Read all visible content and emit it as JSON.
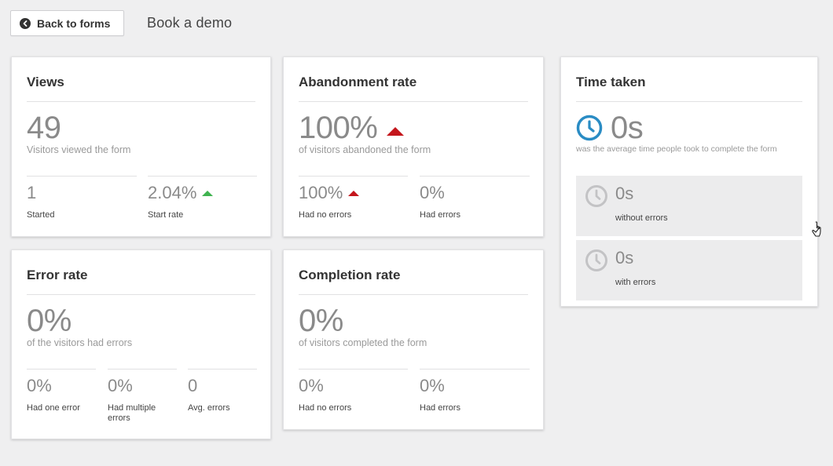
{
  "header": {
    "back_label": "Back to forms",
    "form_name": "Book a demo"
  },
  "views": {
    "title": "Views",
    "value": "49",
    "description": "Visitors viewed the form",
    "stats": [
      {
        "value": "1",
        "label": "Started"
      },
      {
        "value": "2.04%",
        "label": "Start rate",
        "trend": "up-green"
      }
    ]
  },
  "abandonment": {
    "title": "Abandonment rate",
    "value": "100%",
    "trend": "up-red",
    "description": "of visitors abandoned the form",
    "stats": [
      {
        "value": "100%",
        "label": "Had no errors",
        "trend": "up-red"
      },
      {
        "value": "0%",
        "label": "Had errors"
      }
    ]
  },
  "time_taken": {
    "title": "Time taken",
    "value": "0s",
    "description": "was the average time people took to complete the form",
    "panels": [
      {
        "value": "0s",
        "label": "without errors"
      },
      {
        "value": "0s",
        "label": "with errors"
      }
    ]
  },
  "error_rate": {
    "title": "Error rate",
    "value": "0%",
    "description": "of the visitors had errors",
    "stats": [
      {
        "value": "0%",
        "label": "Had one error"
      },
      {
        "value": "0%",
        "label": "Had multiple errors"
      },
      {
        "value": "0",
        "label": "Avg. errors"
      }
    ]
  },
  "completion": {
    "title": "Completion rate",
    "value": "0%",
    "description": "of visitors completed the form",
    "stats": [
      {
        "value": "0%",
        "label": "Had no errors"
      },
      {
        "value": "0%",
        "label": "Had errors"
      }
    ]
  },
  "colors": {
    "accent_clock": "#2a8cc4",
    "trend_up_bad": "#c4161c",
    "trend_up_good": "#3fb34f",
    "muted_value": "#8a8a8a"
  }
}
